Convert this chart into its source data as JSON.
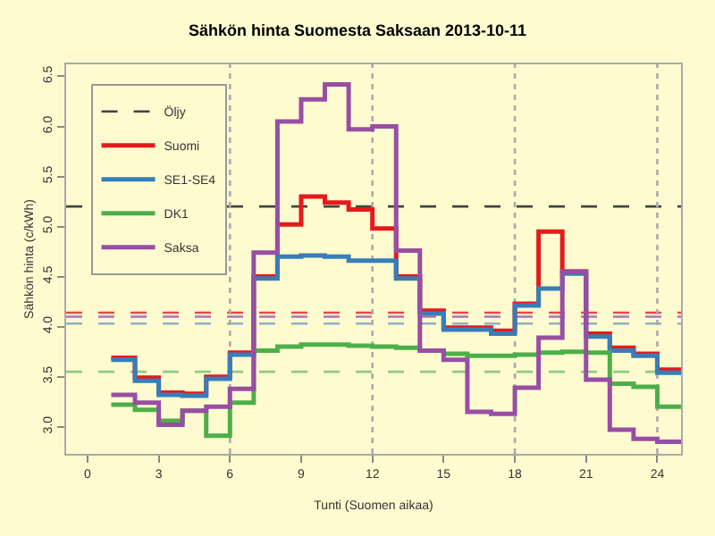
{
  "chart_data": {
    "type": "step",
    "title": "Sähkön hinta Suomesta Saksaan 2013-10-11",
    "xlabel": "Tunti (Suomen aikaa)",
    "ylabel": "Sähkön hinta (c/kWh)",
    "x": [
      1,
      2,
      3,
      4,
      5,
      6,
      7,
      8,
      9,
      10,
      11,
      12,
      13,
      14,
      15,
      16,
      17,
      18,
      19,
      20,
      21,
      22,
      23,
      24,
      25
    ],
    "series": [
      {
        "name": "Suomi",
        "color": "#e41a1c",
        "values": [
          3.69,
          3.49,
          3.34,
          3.33,
          3.5,
          3.74,
          4.5,
          5.02,
          5.3,
          5.24,
          5.17,
          4.98,
          4.5,
          4.16,
          3.99,
          3.99,
          3.96,
          4.23,
          4.95,
          4.55,
          3.93,
          3.79,
          3.73,
          3.57,
          3.57
        ]
      },
      {
        "name": "SE1-SE4",
        "color": "#377eb8",
        "values": [
          3.67,
          3.46,
          3.32,
          3.31,
          3.48,
          3.72,
          4.48,
          4.7,
          4.71,
          4.7,
          4.66,
          4.66,
          4.48,
          4.13,
          3.97,
          3.97,
          3.93,
          4.21,
          4.38,
          4.53,
          3.9,
          3.76,
          3.71,
          3.54,
          3.54
        ]
      },
      {
        "name": "DK1",
        "color": "#4daf4a",
        "values": [
          3.22,
          3.17,
          3.06,
          3.16,
          2.91,
          3.24,
          3.76,
          3.8,
          3.82,
          3.82,
          3.81,
          3.8,
          3.79,
          3.76,
          3.73,
          3.71,
          3.71,
          3.72,
          3.74,
          3.75,
          3.74,
          3.43,
          3.4,
          3.2,
          3.2
        ]
      },
      {
        "name": "Saksa",
        "color": "#984ea3",
        "values": [
          3.32,
          3.24,
          3.02,
          3.16,
          3.2,
          3.38,
          4.74,
          6.05,
          6.27,
          6.42,
          5.97,
          6.0,
          4.76,
          3.76,
          3.67,
          3.15,
          3.13,
          3.39,
          3.89,
          4.55,
          3.47,
          2.97,
          2.88,
          2.85,
          2.85
        ]
      }
    ],
    "ref_lines": [
      {
        "axis": "y",
        "value": 5.2,
        "label": "Öljy",
        "color": "#444444",
        "line_style": "dashed"
      },
      {
        "axis": "y",
        "value": 4.14,
        "color": "#e8474a",
        "line_style": "dashed"
      },
      {
        "axis": "y",
        "value": 4.1,
        "color": "#a877b5",
        "line_style": "dashed"
      },
      {
        "axis": "y",
        "value": 4.03,
        "color": "#8fb0c8",
        "line_style": "dashed"
      },
      {
        "axis": "y",
        "value": 3.55,
        "color": "#8ccc80",
        "line_style": "dashed"
      },
      {
        "axis": "x",
        "value": 6,
        "color": "#aaaaaa",
        "line_style": "dotted"
      },
      {
        "axis": "x",
        "value": 12,
        "color": "#aaaaaa",
        "line_style": "dotted"
      },
      {
        "axis": "x",
        "value": 18,
        "color": "#aaaaaa",
        "line_style": "dotted"
      },
      {
        "axis": "x",
        "value": 24,
        "color": "#aaaaaa",
        "line_style": "dotted"
      }
    ],
    "xlim": [
      -0.9,
      25
    ],
    "xticks": [
      0,
      3,
      6,
      9,
      12,
      15,
      18,
      21,
      24
    ],
    "ylim": [
      2.73,
      6.62
    ],
    "yticks": [
      {
        "value": 3,
        "label": "3.0"
      },
      {
        "value": 3.5,
        "label": "3.5"
      },
      {
        "value": 4,
        "label": "4.0"
      },
      {
        "value": 4.5,
        "label": "4.5"
      },
      {
        "value": 5,
        "label": "5.0"
      },
      {
        "value": 5.5,
        "label": "5.5"
      },
      {
        "value": 6,
        "label": "6.0"
      },
      {
        "value": 6.5,
        "label": "6.5"
      }
    ],
    "legend": "top left"
  }
}
